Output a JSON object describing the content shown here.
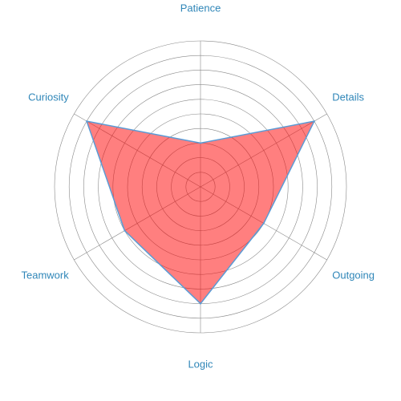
{
  "chart_data": {
    "type": "radar",
    "axes": [
      "Patience",
      "Details",
      "Outgoing",
      "Logic",
      "Teamwork",
      "Curiosity"
    ],
    "values": [
      3,
      9,
      5,
      8,
      6,
      9
    ],
    "rlim": [
      0,
      10
    ],
    "ring_count": 10,
    "grid": true,
    "legend": "none",
    "colors": {
      "fill": "#ff0000",
      "fill_opacity": 0.5,
      "stroke": "#5b9bd5",
      "grid": "#888888",
      "label": "#2f86b8"
    }
  }
}
